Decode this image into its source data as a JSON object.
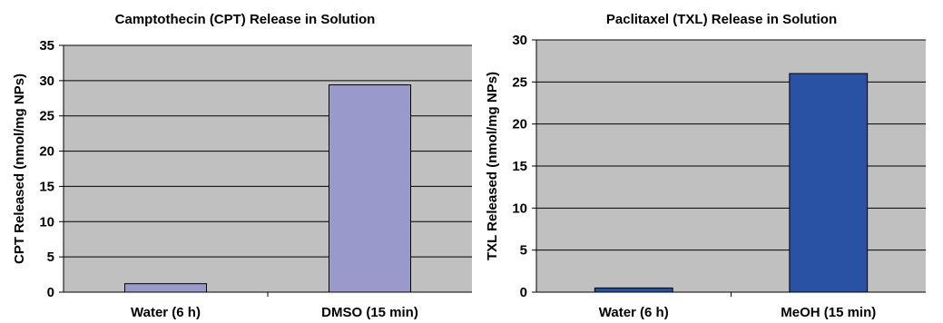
{
  "chart_data": [
    {
      "type": "bar",
      "title": "Camptothecin (CPT) Release in Solution",
      "xlabel": "",
      "ylabel": "CPT Released (nmol/mg NPs)",
      "categories": [
        "Water (6 h)",
        "DMSO (15 min)"
      ],
      "values": [
        1.2,
        29.4
      ],
      "ylim": [
        0,
        35
      ],
      "yticks": [
        0,
        5,
        10,
        15,
        20,
        25,
        30,
        35
      ],
      "grid": true,
      "bar_color": "#9999cc",
      "plot_bg": "#c0c0c0"
    },
    {
      "type": "bar",
      "title": "Paclitaxel (TXL) Release in Solution",
      "xlabel": "",
      "ylabel": "TXL Released (nmol/mg NPs)",
      "categories": [
        "Water (6 h)",
        "MeOH (15 min)"
      ],
      "values": [
        0.5,
        26
      ],
      "ylim": [
        0,
        30
      ],
      "yticks": [
        0,
        5,
        10,
        15,
        20,
        25,
        30
      ],
      "grid": true,
      "bar_color": "#2a52a4",
      "plot_bg": "#c0c0c0"
    }
  ]
}
